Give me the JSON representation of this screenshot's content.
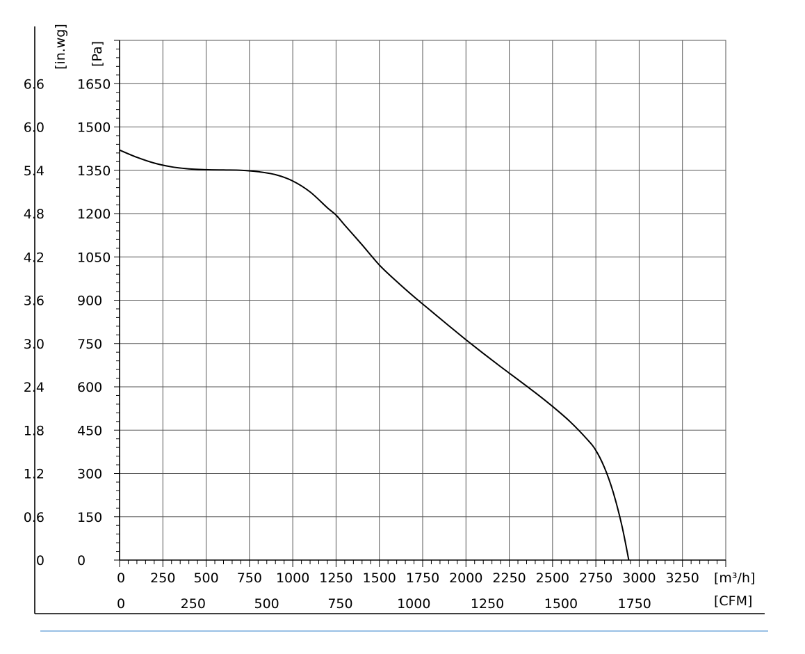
{
  "chart_data": {
    "type": "line",
    "xlabel": "[m³/h]",
    "xlabel_secondary": "[CFM]",
    "ylabel": "[Pa]",
    "ylabel_secondary": "[in.wg]",
    "xlim": [
      0,
      3500
    ],
    "ylim": [
      0,
      1800
    ],
    "x_ticks": [
      "0",
      "250",
      "500",
      "750",
      "1000",
      "1250",
      "1500",
      "1750",
      "2000",
      "2250",
      "2500",
      "2750",
      "3000",
      "3250"
    ],
    "x_tick_values": [
      0,
      250,
      500,
      750,
      1000,
      1250,
      1500,
      1750,
      2000,
      2250,
      2500,
      2750,
      3000,
      3250
    ],
    "x2_ticks": [
      "0",
      "250",
      "500",
      "750",
      "1000",
      "1250",
      "1500",
      "1750"
    ],
    "x2_tick_values": [
      0,
      250,
      500,
      750,
      1000,
      1250,
      1500,
      1750
    ],
    "y_ticks": [
      "0",
      "150",
      "300",
      "450",
      "600",
      "750",
      "900",
      "1050",
      "1200",
      "1350",
      "1500",
      "1650"
    ],
    "y_tick_values": [
      0,
      150,
      300,
      450,
      600,
      750,
      900,
      1050,
      1200,
      1350,
      1500,
      1650
    ],
    "y2_ticks": [
      "0",
      "0.6",
      "1.2",
      "1.8",
      "2.4",
      "3.0",
      "3.6",
      "4.2",
      "4.8",
      "5.4",
      "6.0",
      "6.6"
    ],
    "grid": true,
    "series": [
      {
        "x": [
          0,
          100,
          200,
          300,
          400,
          500,
          600,
          700,
          800,
          900,
          1000,
          1100,
          1200,
          1250,
          1300,
          1400,
          1500,
          1600,
          1700,
          1800,
          1900,
          2000,
          2100,
          2200,
          2300,
          2400,
          2500,
          2600,
          2700,
          2750,
          2800,
          2850,
          2900,
          2940
        ],
        "y": [
          1420,
          1395,
          1375,
          1362,
          1355,
          1352,
          1351,
          1350,
          1345,
          1335,
          1313,
          1275,
          1220,
          1195,
          1160,
          1092,
          1022,
          965,
          912,
          862,
          812,
          763,
          716,
          670,
          625,
          580,
          532,
          480,
          418,
          380,
          320,
          235,
          120,
          0
        ],
        "color": "#000000"
      }
    ]
  },
  "colors": {
    "footer_line": "#5b9bd5"
  }
}
